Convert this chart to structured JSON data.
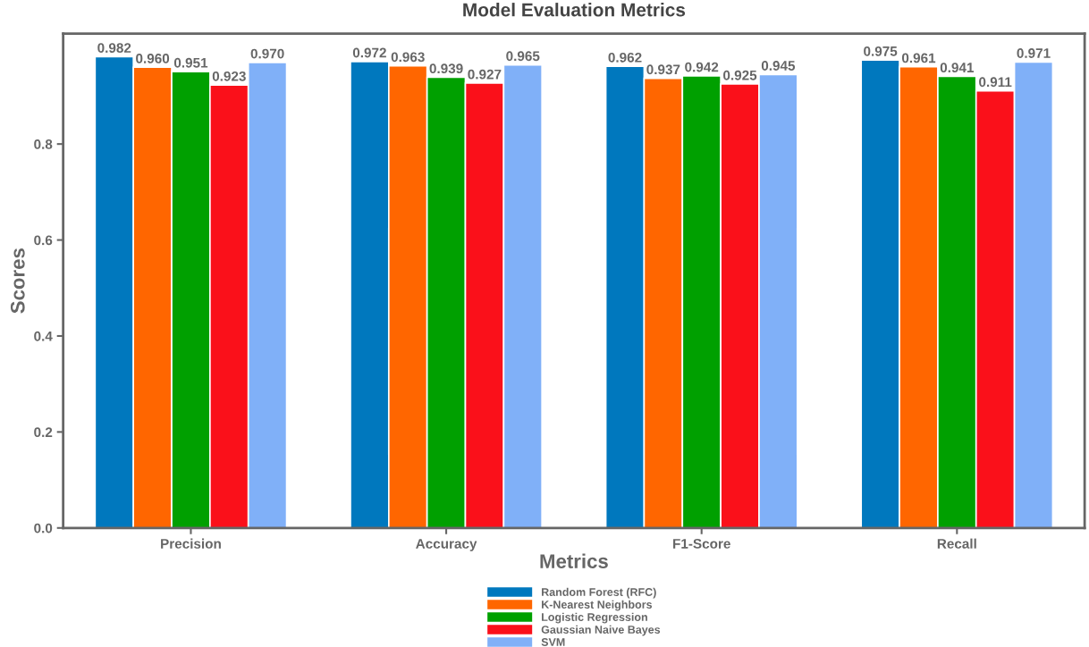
{
  "chart_data": {
    "type": "bar",
    "title": "Model Evaluation Metrics",
    "xlabel": "Metrics",
    "ylabel": "Scores",
    "categories": [
      "Precision",
      "Accuracy",
      "F1-Score",
      "Recall"
    ],
    "series": [
      {
        "name": "Random Forest (RFC)",
        "color": "#0078be",
        "values": [
          0.982,
          0.972,
          0.962,
          0.975
        ],
        "value_labels": [
          "0.982",
          "0.972",
          "0.962",
          "0.975"
        ]
      },
      {
        "name": "K-Nearest Neighbors",
        "color": "#ff6600",
        "values": [
          0.96,
          0.963,
          0.937,
          0.961
        ],
        "value_labels": [
          "0.960",
          "0.963",
          "0.937",
          "0.961"
        ]
      },
      {
        "name": "Logistic Regression",
        "color": "#00a000",
        "values": [
          0.951,
          0.939,
          0.942,
          0.941
        ],
        "value_labels": [
          "0.951",
          "0.939",
          "0.942",
          "0.941"
        ]
      },
      {
        "name": "Gaussian Naive Bayes",
        "color": "#fa101a",
        "values": [
          0.923,
          0.927,
          0.925,
          0.911
        ],
        "value_labels": [
          "0.923",
          "0.927",
          "0.925",
          "0.911"
        ]
      },
      {
        "name": "SVM",
        "color": "#80b0f8",
        "values": [
          0.97,
          0.965,
          0.945,
          0.971
        ],
        "value_labels": [
          "0.970",
          "0.965",
          "0.945",
          "0.971"
        ]
      }
    ],
    "ylim": [
      0,
      1.03
    ],
    "yticks": [
      {
        "value": 0,
        "label": "0.0"
      },
      0.2,
      0.4,
      0.6,
      0.8
    ],
    "grid": false,
    "legend": "bottom"
  }
}
